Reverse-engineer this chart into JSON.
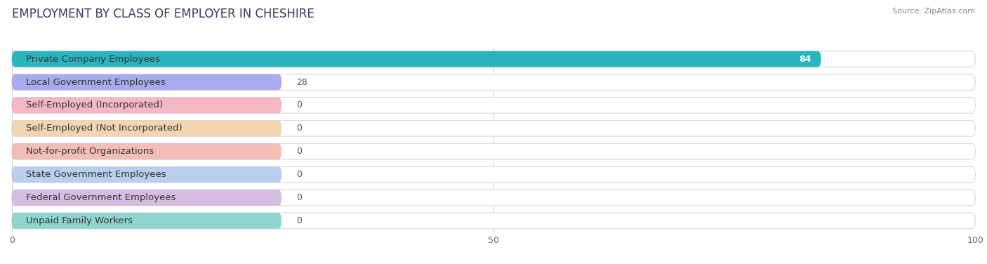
{
  "title": "EMPLOYMENT BY CLASS OF EMPLOYER IN CHESHIRE",
  "source": "Source: ZipAtlas.com",
  "categories": [
    "Private Company Employees",
    "Local Government Employees",
    "Self-Employed (Incorporated)",
    "Self-Employed (Not Incorporated)",
    "Not-for-profit Organizations",
    "State Government Employees",
    "Federal Government Employees",
    "Unpaid Family Workers"
  ],
  "values": [
    84,
    28,
    0,
    0,
    0,
    0,
    0,
    0
  ],
  "bar_colors": [
    "#29b5be",
    "#aaaaee",
    "#f0a0b0",
    "#f0c898",
    "#f0a8a0",
    "#a0c0e8",
    "#c8a8d8",
    "#68c8c0"
  ],
  "xlim": [
    0,
    100
  ],
  "xticks": [
    0,
    50,
    100
  ],
  "background_color": "#ffffff",
  "row_bg_color": "#f0f0f5",
  "title_fontsize": 12,
  "label_fontsize": 9.5,
  "value_fontsize": 9,
  "figsize": [
    14.06,
    3.76
  ],
  "dpi": 100,
  "zero_bar_width": 28
}
